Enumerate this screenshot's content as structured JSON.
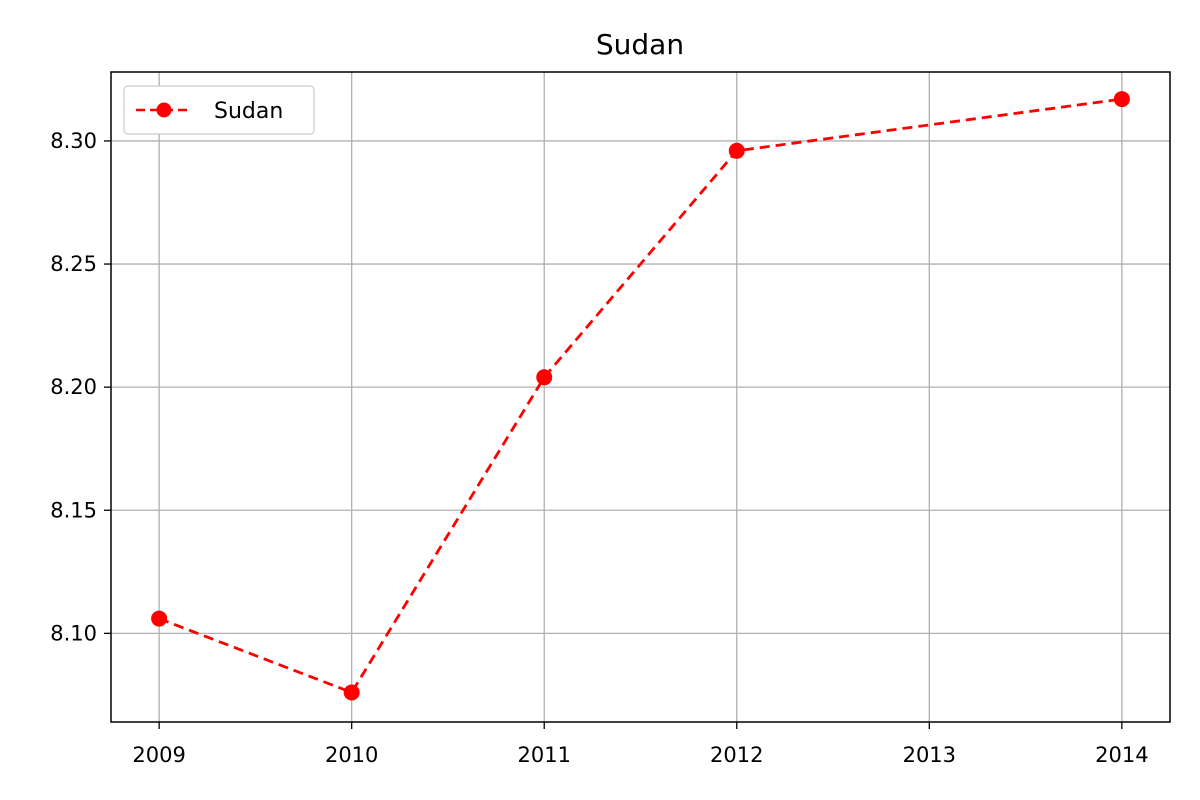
{
  "chart_data": {
    "type": "line",
    "title": "Sudan",
    "xlabel": "",
    "ylabel": "",
    "x": [
      2009,
      2010,
      2011,
      2012,
      2014
    ],
    "x_ticks": [
      "2009",
      "2010",
      "2011",
      "2012",
      "2013",
      "2014"
    ],
    "y_ticks": [
      "8.10",
      "8.15",
      "8.20",
      "8.25",
      "8.30"
    ],
    "xlim": [
      2008.75,
      2014.25
    ],
    "ylim": [
      8.064,
      8.328
    ],
    "grid": true,
    "legend_position": "top-left",
    "series": [
      {
        "name": "Sudan",
        "color": "#ff0000",
        "line_style": "dashed",
        "marker": "circle",
        "values": [
          8.106,
          8.076,
          8.204,
          8.296,
          8.317
        ]
      }
    ]
  }
}
